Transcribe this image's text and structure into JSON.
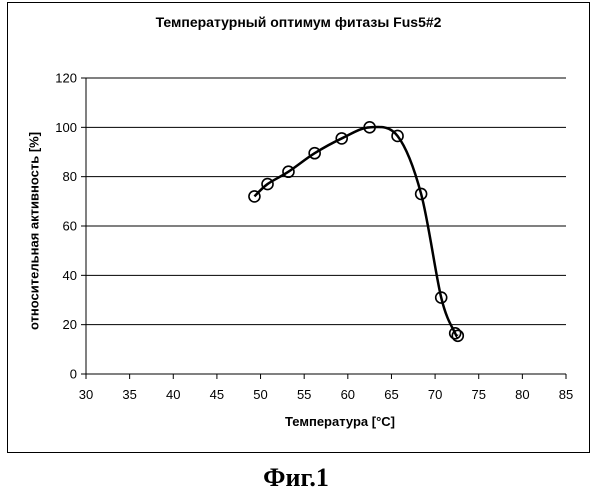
{
  "chart_data": {
    "type": "line",
    "title": "Температурный оптимум фитазы Fus5#2",
    "xlabel": "Температура [°C]",
    "ylabel": "относительная активность [%]",
    "xlim": [
      30,
      85
    ],
    "ylim": [
      0,
      120
    ],
    "xticks": [
      30,
      35,
      40,
      45,
      50,
      55,
      60,
      65,
      70,
      75,
      80,
      85
    ],
    "yticks": [
      0,
      20,
      40,
      60,
      80,
      100,
      120
    ],
    "grid": "horizontal",
    "legend": "none",
    "series": [
      {
        "x": [
          49.3,
          50.8,
          53.2,
          56.2,
          59.3,
          62.5,
          65.7,
          68.4,
          70.7,
          72.3,
          72.6
        ],
        "y": [
          72,
          77,
          82,
          89.5,
          95.5,
          100,
          96.5,
          73,
          31,
          16.5,
          15.5
        ],
        "color": "#000000",
        "marker": "circle",
        "smooth": true
      }
    ]
  },
  "caption": "Фиг.1"
}
